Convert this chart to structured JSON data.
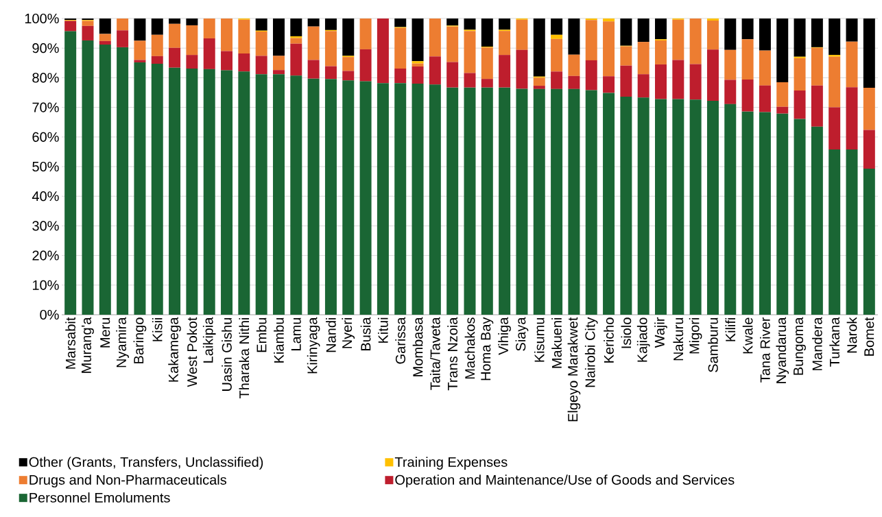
{
  "chart_data": {
    "type": "bar",
    "stacked": true,
    "grid": "y",
    "legend": "bottom",
    "categories": [
      "Marsabit",
      "Murang'a",
      "Meru",
      "Nyamira",
      "Baringo",
      "Kisii",
      "Kakamega",
      "West Pokot",
      "Laikipia",
      "Uasin Gishu",
      "Tharaka Nithi",
      "Embu",
      "Kiambu",
      "Lamu",
      "Kirinyaga",
      "Nandi",
      "Nyeri",
      "Busia",
      "Kitui",
      "Garissa",
      "Mombasa",
      "Taita/Taveta",
      "Trans Nzoia",
      "Machakos",
      "Homa Bay",
      "Vihiga",
      "Siaya",
      "Kisumu",
      "Makueni",
      "Elgeyo Marakwet",
      "Nairobi City",
      "Kericho",
      "Isiolo",
      "Kajiado",
      "Wajir",
      "Nakuru",
      "Migori",
      "Samburu",
      "Kilifi",
      "Kwale",
      "Tana River",
      "Nyandarua",
      "Bungoma",
      "Mandera",
      "Turkana",
      "Narok",
      "Bomet"
    ],
    "series": [
      {
        "name": "Personnel Emoluments",
        "color": "#1a6634",
        "values": [
          95.7,
          92.6,
          91.2,
          90.3,
          85.2,
          84.7,
          83.4,
          83.1,
          82.9,
          82.5,
          82.1,
          81.2,
          81.2,
          80.7,
          79.7,
          79.6,
          79.1,
          78.8,
          78.2,
          78.2,
          78.0,
          77.7,
          76.7,
          76.7,
          76.7,
          76.7,
          76.3,
          76.2,
          76.2,
          76.2,
          75.8,
          74.9,
          73.6,
          73.3,
          72.8,
          72.8,
          72.6,
          72.2,
          71.1,
          68.6,
          68.4,
          67.9,
          66.1,
          63.5,
          55.8,
          55.8,
          49.3
        ]
      },
      {
        "name": "Operation and Maintenance/Use of Goods and Services",
        "color": "#be1e2d",
        "values": [
          3.5,
          4.9,
          1.2,
          5.7,
          0.8,
          2.6,
          6.7,
          4.6,
          10.4,
          6.5,
          6.1,
          6.2,
          1.4,
          10.8,
          6.3,
          4.3,
          3.2,
          10.8,
          21.8,
          4.9,
          5.8,
          9.5,
          8.6,
          4.9,
          2.9,
          11.0,
          13.1,
          1.1,
          5.9,
          4.4,
          10.1,
          5.6,
          10.5,
          7.9,
          11.7,
          13.2,
          12.0,
          17.3,
          8.2,
          10.8,
          9.0,
          2.3,
          9.6,
          13.9,
          14.2,
          21.0,
          13.1
        ]
      },
      {
        "name": "Drugs and Non-Pharmaceuticals",
        "color": "#ed7d31",
        "values": [
          0,
          1.7,
          2.4,
          4.0,
          6.5,
          7.2,
          8.1,
          10.0,
          6.7,
          11.0,
          11.4,
          8.2,
          4.8,
          1.9,
          11.3,
          11.9,
          4.7,
          10.4,
          0,
          13.7,
          1.0,
          12.8,
          12.0,
          14.2,
          10.6,
          8.1,
          10.2,
          2.7,
          11.0,
          7.2,
          13.6,
          18.5,
          6.5,
          10.9,
          8.1,
          13.6,
          15.4,
          9.8,
          10.1,
          13.6,
          11.8,
          8.3,
          10.9,
          12.7,
          17.1,
          15.4,
          14.2
        ]
      },
      {
        "name": "Training Expenses",
        "color": "#ffc000",
        "values": [
          0.3,
          0.3,
          0,
          0,
          0,
          0,
          0,
          0,
          0,
          0,
          0.4,
          0.3,
          0,
          0.6,
          0,
          0.3,
          0.4,
          0,
          0,
          0.3,
          0.8,
          0,
          0.3,
          0.4,
          0.3,
          0.4,
          0.4,
          0.4,
          1.4,
          0,
          0.5,
          1.0,
          0.2,
          0,
          0.4,
          0.4,
          0,
          0.7,
          0,
          0,
          0,
          0,
          0.5,
          0.2,
          0.6,
          0,
          0
        ]
      },
      {
        "name": "Other (Grants, Transfers, Unclassified)",
        "color": "#000000",
        "values": [
          0.5,
          0.5,
          5.2,
          0,
          7.5,
          5.5,
          1.8,
          2.3,
          0,
          0,
          0,
          4.1,
          12.6,
          6.0,
          2.7,
          3.9,
          12.6,
          0,
          0,
          2.9,
          14.4,
          0,
          2.4,
          3.8,
          9.5,
          3.8,
          0,
          19.6,
          5.5,
          12.2,
          0,
          0,
          9.2,
          7.9,
          7.0,
          0,
          0,
          0,
          10.6,
          7.0,
          10.8,
          21.5,
          12.9,
          9.7,
          12.3,
          7.8,
          23.4
        ]
      }
    ],
    "ylim": [
      0,
      100
    ],
    "yticks": [
      {
        "value": 0,
        "label": "0%"
      },
      {
        "value": 10,
        "label": "10%"
      },
      {
        "value": 20,
        "label": "20%"
      },
      {
        "value": 30,
        "label": "30%"
      },
      {
        "value": 40,
        "label": "40%"
      },
      {
        "value": 50,
        "label": "50%"
      },
      {
        "value": 60,
        "label": "60%"
      },
      {
        "value": 70,
        "label": "70%"
      },
      {
        "value": 80,
        "label": "80%"
      },
      {
        "value": 90,
        "label": "90%"
      },
      {
        "value": 100,
        "label": "100%"
      }
    ]
  }
}
